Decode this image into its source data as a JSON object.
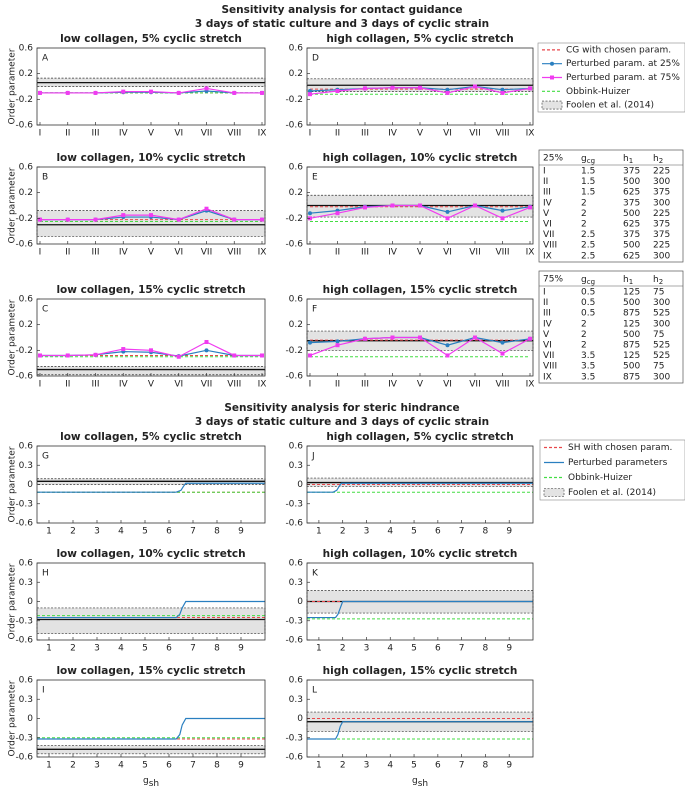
{
  "sections": [
    {
      "title": "Sensitivity analysis for contact guidance",
      "subtitle": "3 days of static culture and 3 days of cyclic strain",
      "legend": [
        {
          "name": "CG with chosen param.",
          "color": "#e8474b",
          "style": "dashed"
        },
        {
          "name": "Perturbed param. at 25%",
          "color": "#2a7fc0",
          "style": "dot-marker"
        },
        {
          "name": "Perturbed param. at 75%",
          "color": "#f03cf0",
          "style": "square-marker"
        },
        {
          "name": "Obbink-Huizer",
          "color": "#44dd44",
          "style": "dashed"
        },
        {
          "name": "Foolen et al. (2014)",
          "color": "#e3e3e3",
          "style": "band"
        }
      ]
    },
    {
      "title": "Sensitivity analysis for steric hindrance",
      "subtitle": "3 days of static culture and 3 days of cyclic strain",
      "legend": [
        {
          "name": "SH with chosen param.",
          "color": "#e8474b",
          "style": "dashed"
        },
        {
          "name": "Perturbed parameters",
          "color": "#2a7fc0",
          "style": "solid"
        },
        {
          "name": "Obbink-Huizer",
          "color": "#44dd44",
          "style": "dashed"
        },
        {
          "name": "Foolen et al. (2014)",
          "color": "#e3e3e3",
          "style": "band"
        }
      ]
    }
  ],
  "tables": [
    {
      "header": [
        "25%",
        {
          "main": "g",
          "sub": "cg"
        },
        {
          "main": "h",
          "sub": "1"
        },
        {
          "main": "h",
          "sub": "2"
        }
      ],
      "rows": [
        [
          "I",
          1.5,
          375,
          225
        ],
        [
          "II",
          1.5,
          500,
          300
        ],
        [
          "III",
          1.5,
          625,
          375
        ],
        [
          "IV",
          2,
          375,
          300
        ],
        [
          "V",
          2,
          500,
          225
        ],
        [
          "VI",
          2,
          625,
          375
        ],
        [
          "VII",
          2.5,
          375,
          375
        ],
        [
          "VIII",
          2.5,
          500,
          225
        ],
        [
          "IX",
          2.5,
          625,
          300
        ]
      ]
    },
    {
      "header": [
        "75%",
        {
          "main": "g",
          "sub": "cg"
        },
        {
          "main": "h",
          "sub": "1"
        },
        {
          "main": "h",
          "sub": "2"
        }
      ],
      "rows": [
        [
          "I",
          0.5,
          125,
          75
        ],
        [
          "II",
          0.5,
          500,
          300
        ],
        [
          "III",
          0.5,
          875,
          525
        ],
        [
          "IV",
          2,
          125,
          300
        ],
        [
          "V",
          2,
          500,
          75
        ],
        [
          "VI",
          2,
          875,
          525
        ],
        [
          "VII",
          3.5,
          125,
          525
        ],
        [
          "VIII",
          3.5,
          500,
          75
        ],
        [
          "IX",
          3.5,
          875,
          300
        ]
      ]
    }
  ],
  "chart_data": [
    {
      "type": "line",
      "label": "A",
      "title": "low collagen, 5% cyclic stretch",
      "ylabel": "Order parameter",
      "categories": [
        "I",
        "II",
        "III",
        "IV",
        "V",
        "VI",
        "VII",
        "VIII",
        "IX"
      ],
      "ylim": [
        -0.6,
        0.6
      ],
      "yticks": [
        -0.6,
        -0.2,
        0.2,
        0.6
      ],
      "band": {
        "mean": 0.06,
        "lower": 0.0,
        "upper": 0.13
      },
      "series": [
        {
          "values": [
            -0.1,
            -0.1,
            -0.1,
            -0.1,
            -0.1,
            -0.1,
            -0.1,
            -0.1,
            -0.1
          ]
        },
        {
          "values": [
            -0.1,
            -0.1,
            -0.1,
            -0.09,
            -0.09,
            -0.1,
            -0.07,
            -0.1,
            -0.1
          ]
        },
        {
          "values": [
            -0.1,
            -0.1,
            -0.1,
            -0.08,
            -0.08,
            -0.1,
            -0.03,
            -0.1,
            -0.1
          ]
        },
        {
          "values": [
            -0.1,
            -0.1,
            -0.1,
            -0.1,
            -0.1,
            -0.1,
            -0.1,
            -0.1,
            -0.1
          ]
        }
      ]
    },
    {
      "type": "line",
      "label": "D",
      "title": "high collagen, 5% cyclic stretch",
      "categories": [
        "I",
        "II",
        "III",
        "IV",
        "V",
        "VI",
        "VII",
        "VIII",
        "IX"
      ],
      "ylim": [
        -0.6,
        0.6
      ],
      "yticks": [
        -0.6,
        -0.2,
        0.2,
        0.6
      ],
      "band": {
        "mean": 0.02,
        "lower": -0.08,
        "upper": 0.12
      },
      "series": [
        {
          "values": [
            -0.04,
            -0.04,
            -0.04,
            -0.04,
            -0.04,
            -0.04,
            -0.04,
            -0.04,
            -0.04
          ]
        },
        {
          "values": [
            -0.07,
            -0.05,
            -0.03,
            -0.02,
            -0.02,
            -0.05,
            0,
            -0.05,
            -0.03
          ]
        },
        {
          "values": [
            -0.12,
            -0.07,
            -0.03,
            -0.02,
            -0.02,
            -0.1,
            0,
            -0.1,
            -0.03
          ]
        },
        {
          "values": [
            -0.12,
            -0.12,
            -0.12,
            -0.12,
            -0.12,
            -0.12,
            -0.12,
            -0.12,
            -0.12
          ]
        }
      ]
    },
    {
      "type": "line",
      "label": "B",
      "title": "low collagen, 10% cyclic stretch",
      "ylabel": "Order parameter",
      "categories": [
        "I",
        "II",
        "III",
        "IV",
        "V",
        "VI",
        "VII",
        "VIII",
        "IX"
      ],
      "ylim": [
        -0.6,
        0.6
      ],
      "yticks": [
        -0.6,
        -0.2,
        0.2,
        0.6
      ],
      "band": {
        "mean": -0.3,
        "lower": -0.48,
        "upper": -0.08
      },
      "series": [
        {
          "values": [
            -0.22,
            -0.22,
            -0.22,
            -0.22,
            -0.22,
            -0.22,
            -0.22,
            -0.22,
            -0.22
          ]
        },
        {
          "values": [
            -0.22,
            -0.22,
            -0.22,
            -0.18,
            -0.18,
            -0.22,
            -0.08,
            -0.22,
            -0.22
          ]
        },
        {
          "values": [
            -0.22,
            -0.22,
            -0.22,
            -0.15,
            -0.15,
            -0.22,
            -0.05,
            -0.22,
            -0.22
          ]
        },
        {
          "values": [
            -0.25,
            -0.25,
            -0.25,
            -0.25,
            -0.25,
            -0.25,
            -0.25,
            -0.25,
            -0.25
          ]
        }
      ]
    },
    {
      "type": "line",
      "label": "E",
      "title": "high collagen, 10% cyclic stretch",
      "categories": [
        "I",
        "II",
        "III",
        "IV",
        "V",
        "VI",
        "VII",
        "VIII",
        "IX"
      ],
      "ylim": [
        -0.6,
        0.6
      ],
      "yticks": [
        -0.6,
        -0.2,
        0.2,
        0.6
      ],
      "band": {
        "mean": 0.0,
        "lower": -0.18,
        "upper": 0.16
      },
      "series": [
        {
          "values": [
            -0.02,
            -0.02,
            -0.02,
            -0.02,
            -0.02,
            -0.02,
            -0.02,
            -0.02,
            -0.02
          ]
        },
        {
          "values": [
            -0.12,
            -0.08,
            -0.02,
            0,
            0,
            -0.1,
            0,
            -0.08,
            -0.02
          ]
        },
        {
          "values": [
            -0.2,
            -0.12,
            -0.03,
            0,
            0,
            -0.2,
            0,
            -0.2,
            -0.03
          ]
        },
        {
          "values": [
            -0.25,
            -0.25,
            -0.25,
            -0.25,
            -0.25,
            -0.25,
            -0.25,
            -0.25,
            -0.25
          ]
        }
      ]
    },
    {
      "type": "line",
      "label": "C",
      "title": "low collagen, 15% cyclic stretch",
      "ylabel": "Order parameter",
      "categories": [
        "I",
        "II",
        "III",
        "IV",
        "V",
        "VI",
        "VII",
        "VIII",
        "IX"
      ],
      "ylim": [
        -0.6,
        0.6
      ],
      "yticks": [
        -0.6,
        -0.2,
        0.2,
        0.6
      ],
      "band": {
        "mean": -0.5,
        "lower": -0.58,
        "upper": -0.45
      },
      "series": [
        {
          "values": [
            -0.28,
            -0.28,
            -0.28,
            -0.28,
            -0.28,
            -0.28,
            -0.28,
            -0.28,
            -0.28
          ]
        },
        {
          "values": [
            -0.28,
            -0.28,
            -0.27,
            -0.22,
            -0.23,
            -0.29,
            -0.2,
            -0.28,
            -0.28
          ]
        },
        {
          "values": [
            -0.28,
            -0.28,
            -0.27,
            -0.18,
            -0.2,
            -0.3,
            -0.07,
            -0.28,
            -0.28
          ]
        },
        {
          "values": [
            -0.3,
            -0.3,
            -0.3,
            -0.3,
            -0.3,
            -0.3,
            -0.3,
            -0.3,
            -0.3
          ]
        }
      ]
    },
    {
      "type": "line",
      "label": "F",
      "title": "high collagen, 15% cyclic stretch",
      "categories": [
        "I",
        "II",
        "III",
        "IV",
        "V",
        "VI",
        "VII",
        "VIII",
        "IX"
      ],
      "ylim": [
        -0.6,
        0.6
      ],
      "yticks": [
        -0.6,
        -0.2,
        0.2,
        0.6
      ],
      "band": {
        "mean": -0.05,
        "lower": -0.2,
        "upper": 0.1
      },
      "series": [
        {
          "values": [
            -0.04,
            -0.04,
            -0.04,
            -0.04,
            -0.04,
            -0.04,
            -0.04,
            -0.04,
            -0.04
          ]
        },
        {
          "values": [
            -0.08,
            -0.06,
            -0.02,
            0,
            0,
            -0.12,
            0,
            -0.08,
            -0.02
          ]
        },
        {
          "values": [
            -0.28,
            -0.12,
            -0.02,
            0,
            0,
            -0.28,
            0,
            -0.25,
            -0.02
          ]
        },
        {
          "values": [
            -0.3,
            -0.3,
            -0.3,
            -0.3,
            -0.3,
            -0.3,
            -0.3,
            -0.3,
            -0.3
          ]
        }
      ]
    },
    {
      "type": "line",
      "label": "G",
      "title": "low collagen, 5% cyclic stretch",
      "ylabel": "Order parameter",
      "xlim": [
        0.5,
        10
      ],
      "xticks": [
        1,
        2,
        3,
        4,
        5,
        6,
        7,
        8,
        9
      ],
      "ylim": [
        -0.6,
        0.6
      ],
      "yticks": [
        -0.6,
        -0.3,
        0,
        0.3,
        0.6
      ],
      "band": {
        "mean": 0.05,
        "lower": 0.0,
        "upper": 0.09
      },
      "series": [
        {
          "value": -0.12
        },
        {
          "x": [
            0.5,
            6.3,
            6.5,
            6.6,
            6.7,
            10
          ],
          "values": [
            -0.12,
            -0.12,
            -0.09,
            -0.03,
            0.02,
            0.02
          ]
        },
        {
          "value": -0.12
        }
      ]
    },
    {
      "type": "line",
      "label": "J",
      "title": "high collagen, 5% cyclic stretch",
      "xlim": [
        0.5,
        10
      ],
      "xticks": [
        1,
        2,
        3,
        4,
        5,
        6,
        7,
        8,
        9
      ],
      "ylim": [
        -0.6,
        0.6
      ],
      "yticks": [
        -0.6,
        -0.3,
        0,
        0.3,
        0.6
      ],
      "band": {
        "mean": 0.03,
        "lower": -0.03,
        "upper": 0.1
      },
      "series": [
        {
          "value": 0.0
        },
        {
          "x": [
            0.5,
            1.6,
            1.75,
            1.85,
            1.95,
            10
          ],
          "values": [
            -0.12,
            -0.12,
            -0.09,
            -0.03,
            0.02,
            0.02
          ]
        },
        {
          "value": -0.12
        }
      ]
    },
    {
      "type": "line",
      "label": "H",
      "title": "low collagen, 10% cyclic stretch",
      "ylabel": "Order parameter",
      "xlim": [
        0.5,
        10
      ],
      "xticks": [
        1,
        2,
        3,
        4,
        5,
        6,
        7,
        8,
        9
      ],
      "ylim": [
        -0.6,
        0.6
      ],
      "yticks": [
        -0.6,
        -0.3,
        0,
        0.3,
        0.6
      ],
      "band": {
        "mean": -0.28,
        "lower": -0.5,
        "upper": -0.1
      },
      "series": [
        {
          "value": -0.25
        },
        {
          "x": [
            0.5,
            6.3,
            6.45,
            6.55,
            6.7,
            10
          ],
          "values": [
            -0.25,
            -0.25,
            -0.2,
            -0.1,
            0.0,
            0.0
          ]
        },
        {
          "value": -0.22
        }
      ]
    },
    {
      "type": "line",
      "label": "K",
      "title": "high collagen, 10% cyclic stretch",
      "xlim": [
        0.5,
        10
      ],
      "xticks": [
        1,
        2,
        3,
        4,
        5,
        6,
        7,
        8,
        9
      ],
      "ylim": [
        -0.6,
        0.6
      ],
      "yticks": [
        -0.6,
        -0.3,
        0,
        0.3,
        0.6
      ],
      "band": {
        "mean": 0.0,
        "lower": -0.18,
        "upper": 0.17
      },
      "series": [
        {
          "value": 0.0
        },
        {
          "x": [
            0.5,
            1.7,
            1.8,
            1.9,
            2.0,
            10
          ],
          "values": [
            -0.25,
            -0.25,
            -0.2,
            -0.1,
            0.0,
            0.0
          ]
        },
        {
          "value": -0.27
        }
      ]
    },
    {
      "type": "line",
      "label": "I",
      "title": "low collagen, 15% cyclic stretch",
      "ylabel": "Order parameter",
      "xlabel": {
        "main": "g",
        "sub": "sh"
      },
      "xlim": [
        0.5,
        10
      ],
      "xticks": [
        1,
        2,
        3,
        4,
        5,
        6,
        7,
        8,
        9
      ],
      "ylim": [
        -0.6,
        0.6
      ],
      "yticks": [
        -0.6,
        -0.3,
        0,
        0.3,
        0.6
      ],
      "band": {
        "mean": -0.48,
        "lower": -0.55,
        "upper": -0.42
      },
      "series": [
        {
          "value": -0.32
        },
        {
          "x": [
            0.5,
            6.3,
            6.45,
            6.55,
            6.7,
            10
          ],
          "values": [
            -0.32,
            -0.32,
            -0.25,
            -0.1,
            0.0,
            0.0
          ]
        },
        {
          "value": -0.3
        }
      ]
    },
    {
      "type": "line",
      "label": "L",
      "title": "high collagen, 15% cyclic stretch",
      "xlabel": {
        "main": "g",
        "sub": "sh"
      },
      "xlim": [
        0.5,
        10
      ],
      "xticks": [
        1,
        2,
        3,
        4,
        5,
        6,
        7,
        8,
        9
      ],
      "ylim": [
        -0.6,
        0.6
      ],
      "yticks": [
        -0.6,
        -0.3,
        0,
        0.3,
        0.6
      ],
      "band": {
        "mean": -0.05,
        "lower": -0.2,
        "upper": 0.1
      },
      "series": [
        {
          "value": 0.0
        },
        {
          "x": [
            0.5,
            1.7,
            1.8,
            1.9,
            2.0,
            10
          ],
          "values": [
            -0.32,
            -0.32,
            -0.25,
            -0.12,
            -0.05,
            -0.05
          ]
        },
        {
          "value": -0.32
        }
      ]
    }
  ]
}
